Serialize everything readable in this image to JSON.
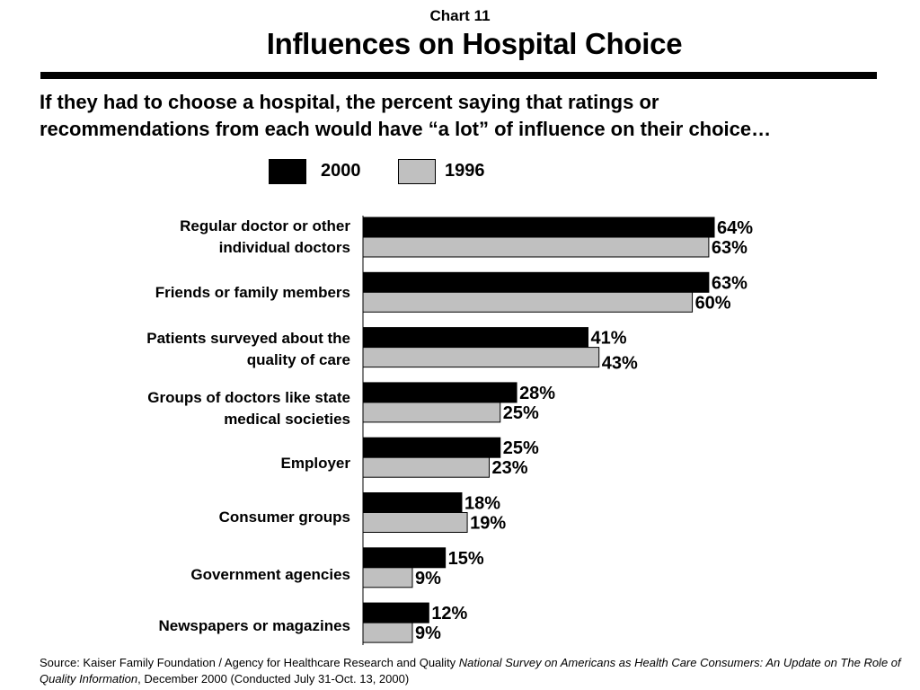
{
  "chart_label": "Chart 11",
  "title": "Influences on Hospital Choice",
  "subtitle_lines": [
    "If they had to choose a hospital, the percent saying that ratings or",
    "recommendations from each would have “a lot” of influence on their choice…"
  ],
  "source": {
    "prefix": "Source: Kaiser Family Foundation / Agency for Healthcare Research and Quality ",
    "italic": "National Survey on Americans as Health Care Consumers:  An Update on The Role of Quality Information",
    "suffix": ", December 2000 (Conducted July 31-Oct. 13, 2000)"
  },
  "colors": {
    "series_2000": "#000000",
    "series_1996": "#c0c0c0"
  },
  "chart_data": {
    "type": "bar",
    "orientation": "horizontal",
    "categories": [
      "Regular doctor or other individual doctors",
      "Friends or family members",
      "Patients surveyed about the quality of care",
      "Groups of doctors like state medical societies",
      "Employer",
      "Consumer groups",
      "Government agencies",
      "Newspapers or magazines"
    ],
    "category_lines": [
      [
        "Regular doctor or other",
        "individual doctors"
      ],
      [
        "Friends or family members"
      ],
      [
        "Patients surveyed about the",
        "quality of care"
      ],
      [
        "Groups of doctors like state",
        "medical societies"
      ],
      [
        "Employer"
      ],
      [
        "Consumer groups"
      ],
      [
        "Government agencies"
      ],
      [
        "Newspapers or magazines"
      ]
    ],
    "series": [
      {
        "name": "2000",
        "color": "#000000",
        "values": [
          64,
          63,
          41,
          28,
          25,
          18,
          15,
          12
        ],
        "labels": [
          "64%",
          "63%",
          "41%",
          "28%",
          "25%",
          "18%",
          "15%",
          "12%"
        ]
      },
      {
        "name": "1996",
        "color": "#c0c0c0",
        "values": [
          63,
          60,
          43,
          25,
          23,
          19,
          9,
          9
        ],
        "labels": [
          "63%",
          "60%",
          "43%",
          "25%",
          "23%",
          "19%",
          "9%",
          "9%"
        ]
      }
    ],
    "value_unit": "%",
    "xlim": [
      0,
      65
    ],
    "legend_position": "top",
    "grid": false
  }
}
